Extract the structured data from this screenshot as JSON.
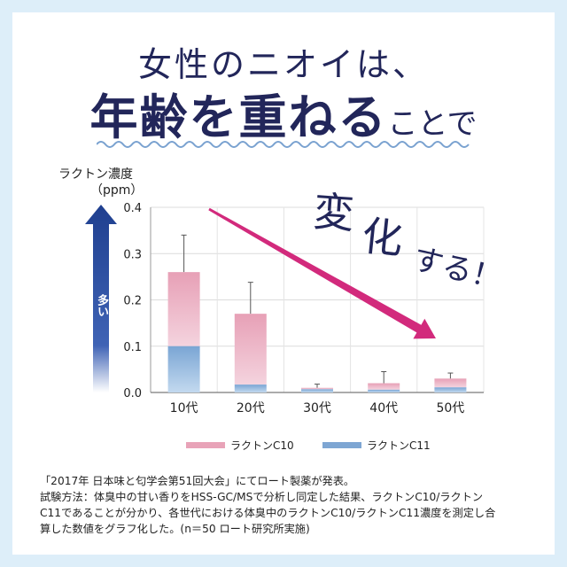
{
  "headline": {
    "line1": "女性のニオイは、",
    "line2_big": "年齢を重ねる",
    "line2_small": "ことで"
  },
  "callout": {
    "part1": "変",
    "part2": "化",
    "part3": "する！"
  },
  "y_axis": {
    "label_line1": "ラクトン濃度",
    "label_line2": "（ppm）",
    "direction_label": "多い"
  },
  "colors": {
    "c10": "#e8a3b8",
    "c11": "#7ea6d3",
    "trend_arrow": "#d22a7c",
    "axis_arrow": "#1f3f8f",
    "title": "#22265a"
  },
  "chart_data": {
    "type": "bar",
    "stacked": true,
    "categories": [
      "10代",
      "20代",
      "30代",
      "40代",
      "50代"
    ],
    "series": [
      {
        "name": "ラクトンC10",
        "values": [
          0.16,
          0.153,
          0.003,
          0.014,
          0.019
        ],
        "color": "#e8a3b8"
      },
      {
        "name": "ラクトンC11",
        "values": [
          0.1,
          0.017,
          0.007,
          0.006,
          0.011
        ],
        "color": "#7ea6d3"
      }
    ],
    "totals": [
      0.26,
      0.17,
      0.01,
      0.02,
      0.03
    ],
    "error_upper": [
      0.34,
      0.238,
      0.018,
      0.045,
      0.042
    ],
    "yticks": [
      "0.0",
      "0.1",
      "0.2",
      "0.3",
      "0.4"
    ],
    "ylim": [
      0,
      0.4
    ],
    "grid": true,
    "legend_position": "bottom",
    "trend_arrow": "decreasing"
  },
  "legend": {
    "c10": "ラクトンC10",
    "c11": "ラクトンC11"
  },
  "footnote": {
    "line1": "「2017年 日本味と匂学会第51回大会」にてロート製薬が発表。",
    "line2": "試験方法：体臭中の甘い香りをHSS-GC/MSで分析し同定した結果、ラクトンC10/ラクトン",
    "line3": "C11であることが分かり、各世代における体臭中のラクトンC10/ラクトンC11濃度を測定し合",
    "line4": "算した数値をグラフ化した。(n＝50 ロート研究所実施)"
  }
}
